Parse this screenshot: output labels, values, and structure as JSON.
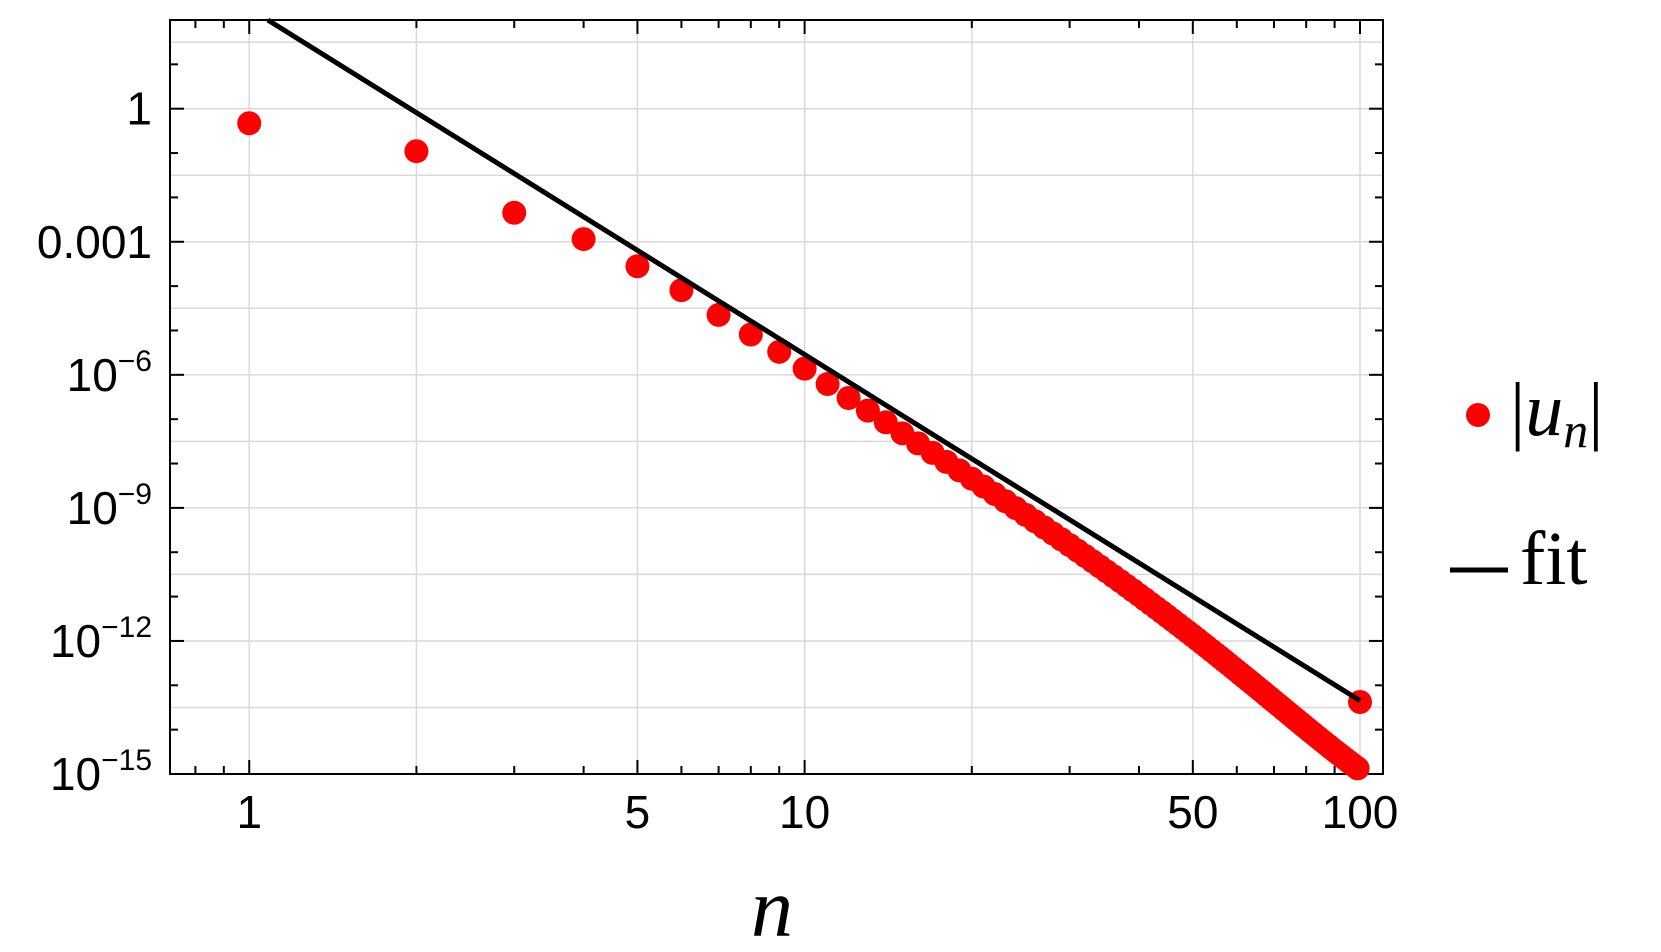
{
  "chart_data": {
    "type": "scatter",
    "xlabel": "n",
    "ylabel": "",
    "xscale": "log",
    "yscale": "log",
    "xlim": [
      0.72,
      110
    ],
    "ylim": [
      1e-15,
      100
    ],
    "grid": true,
    "legend_placement": "right",
    "x_ticks": [
      {
        "value": 1,
        "label": "1"
      },
      {
        "value": 5,
        "label": "5"
      },
      {
        "value": 10,
        "label": "10"
      },
      {
        "value": 50,
        "label": "50"
      },
      {
        "value": 100,
        "label": "100"
      }
    ],
    "y_ticks": [
      {
        "value": 1,
        "label": "1",
        "base": "1",
        "exp": ""
      },
      {
        "value": 0.001,
        "label": "0.001",
        "base": "0.001",
        "exp": ""
      },
      {
        "value": 1e-06,
        "label": "10^-6",
        "base": "10",
        "exp": "−6"
      },
      {
        "value": 1e-09,
        "label": "10^-9",
        "base": "10",
        "exp": "−9"
      },
      {
        "value": 1e-12,
        "label": "10^-12",
        "base": "10",
        "exp": "−12"
      },
      {
        "value": 1e-15,
        "label": "10^-15",
        "base": "10",
        "exp": "−15"
      }
    ],
    "series": [
      {
        "name": "|u_n|",
        "kind": "points",
        "color": "#ff0000",
        "x": [
          1,
          2,
          3,
          4,
          5,
          6,
          7,
          8,
          9,
          10,
          11,
          12,
          13,
          14,
          15,
          16,
          17,
          18,
          19,
          20,
          21,
          22,
          23,
          24,
          25,
          26,
          27,
          28,
          29,
          30,
          31,
          32,
          33,
          34,
          35,
          36,
          37,
          38,
          39,
          40,
          41,
          42,
          43,
          44,
          45,
          46,
          47,
          48,
          49,
          50,
          51,
          52,
          53,
          54,
          55,
          56,
          57,
          58,
          59,
          60,
          61,
          62,
          63,
          64,
          65,
          66,
          67,
          68,
          69,
          70,
          71,
          72,
          73,
          74,
          75,
          76,
          77,
          78,
          79,
          80,
          81,
          82,
          83,
          84,
          85,
          86,
          87,
          88,
          89,
          90,
          91,
          92,
          93,
          94,
          95,
          96,
          97,
          98,
          99,
          100
        ],
        "y": [
          0.47,
          0.11,
          0.0045,
          0.00115,
          0.00028,
          8.1e-05,
          2.24e-05,
          8.1e-06,
          3.3e-06,
          1.38e-06,
          6.2e-07,
          3e-07,
          1.56e-07,
          8.5e-08,
          4.8e-08,
          2.85e-08,
          1.74e-08,
          1.09e-08,
          7e-09,
          4.55e-09,
          3.03e-09,
          2.05e-09,
          1.41e-09,
          9.85e-10,
          6.96e-10,
          4.98e-10,
          3.61e-10,
          2.64e-10,
          1.95e-10,
          1.45e-10,
          1.09e-10,
          8.23e-11,
          6.26e-11,
          4.79e-11,
          3.69e-11,
          2.86e-11,
          2.23e-11,
          1.75e-11,
          1.38e-11,
          1.09e-11,
          8.66e-12,
          6.91e-12,
          5.54e-12,
          4.46e-12,
          3.6e-12,
          2.92e-12,
          2.37e-12,
          1.94e-12,
          1.59e-12,
          1.31e-12,
          1.08e-12,
          8.9e-13,
          7.37e-13,
          6.12e-13,
          5.1e-13,
          4.26e-13,
          3.56e-13,
          2.99e-13,
          2.51e-13,
          2.12e-13,
          1.79e-13,
          1.52e-13,
          1.29e-13,
          1.1e-13,
          9.38e-14,
          8.02e-14,
          6.87e-14,
          5.9e-14,
          5.07e-14,
          4.37e-14,
          3.78e-14,
          3.27e-14,
          2.83e-14,
          2.46e-14,
          2.14e-14,
          1.87e-14,
          1.63e-14,
          1.43e-14,
          1.25e-14,
          1.1e-14,
          9.69e-15,
          8.55e-15,
          7.55e-15,
          6.69e-15,
          5.94e-15,
          5.28e-15,
          4.7e-15,
          4.2e-15,
          3.75e-15,
          3.36e-15,
          3.02e-15,
          2.71e-15,
          2.44e-15,
          2.2e-15,
          1.99e-15,
          1.8e-15,
          1.63e-15,
          1.48e-15,
          1.34e-15,
          4.2e-14
        ]
      },
      {
        "name": "fit",
        "kind": "line",
        "color": "#000000",
        "x": [
          1.08,
          100
        ],
        "y": [
          100,
          4.5e-14
        ]
      }
    ],
    "legend": [
      {
        "name": "|u_n|",
        "text_main": "|u",
        "text_sub": "n",
        "text_end": "|",
        "color": "#ff0000",
        "symbol": "dot"
      },
      {
        "name": "fit",
        "text_main": "fit",
        "color": "#000000",
        "symbol": "line"
      }
    ]
  }
}
